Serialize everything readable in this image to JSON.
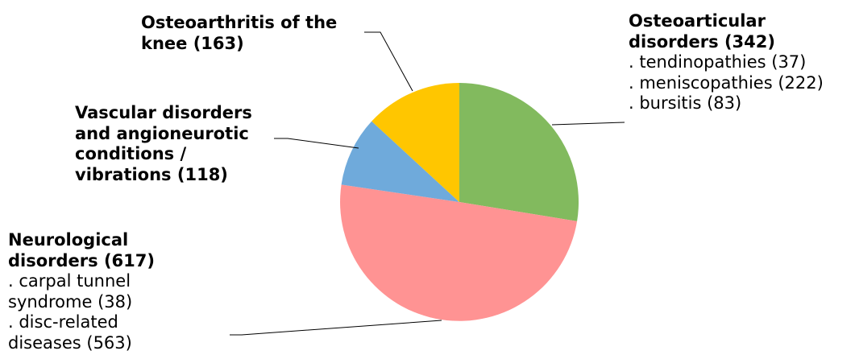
{
  "chart_data": {
    "type": "pie",
    "title": "",
    "slices": [
      {
        "label": "Osteoarticular disorders (342)",
        "value": 342,
        "color": "#82BA5E",
        "details": [
          ". tendinopathies (37)",
          ". meniscopathies (222)",
          ". bursitis (83)"
        ]
      },
      {
        "label": "Neurological disorders (617)",
        "value": 617,
        "color": "#FF9393",
        "details": [
          ". carpal tunnel syndrome (38)",
          ". disc-related diseases (563)"
        ]
      },
      {
        "label": "Vascular disorders and angioneurotic conditions / vibrations (118)",
        "value": 118,
        "color": "#6FAADB",
        "details": []
      },
      {
        "label": "Osteoarthritis of the knee (163)",
        "value": 163,
        "color": "#FFC600",
        "details": []
      }
    ],
    "legend": "none",
    "start_angle": "12 o'clock, clockwise"
  }
}
